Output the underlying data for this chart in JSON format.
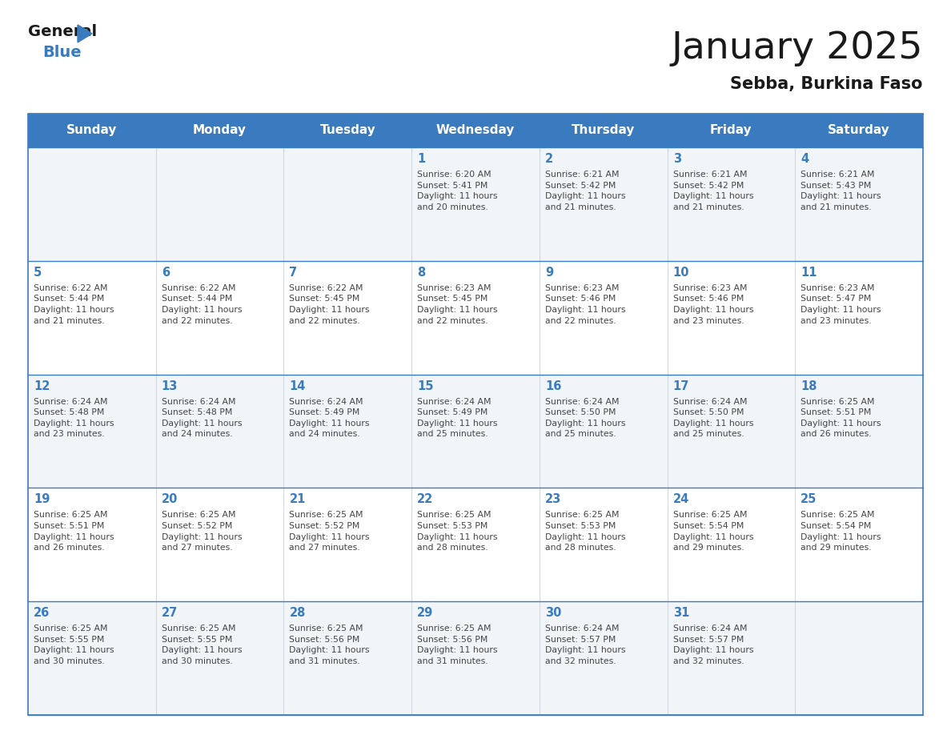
{
  "title": "January 2025",
  "subtitle": "Sebba, Burkina Faso",
  "days_of_week": [
    "Sunday",
    "Monday",
    "Tuesday",
    "Wednesday",
    "Thursday",
    "Friday",
    "Saturday"
  ],
  "header_bg": "#3a7bbf",
  "header_text": "#ffffff",
  "cell_bg_odd": "#f2f5f8",
  "cell_bg_even": "#ffffff",
  "border_color": "#3a7bbf",
  "title_color": "#1a1a1a",
  "subtitle_color": "#1a1a1a",
  "day_number_color": "#3a7bbf",
  "cell_text_color": "#444444",
  "calendar_data": [
    [
      {
        "day": null,
        "info": null
      },
      {
        "day": null,
        "info": null
      },
      {
        "day": null,
        "info": null
      },
      {
        "day": 1,
        "info": "Sunrise: 6:20 AM\nSunset: 5:41 PM\nDaylight: 11 hours\nand 20 minutes."
      },
      {
        "day": 2,
        "info": "Sunrise: 6:21 AM\nSunset: 5:42 PM\nDaylight: 11 hours\nand 21 minutes."
      },
      {
        "day": 3,
        "info": "Sunrise: 6:21 AM\nSunset: 5:42 PM\nDaylight: 11 hours\nand 21 minutes."
      },
      {
        "day": 4,
        "info": "Sunrise: 6:21 AM\nSunset: 5:43 PM\nDaylight: 11 hours\nand 21 minutes."
      }
    ],
    [
      {
        "day": 5,
        "info": "Sunrise: 6:22 AM\nSunset: 5:44 PM\nDaylight: 11 hours\nand 21 minutes."
      },
      {
        "day": 6,
        "info": "Sunrise: 6:22 AM\nSunset: 5:44 PM\nDaylight: 11 hours\nand 22 minutes."
      },
      {
        "day": 7,
        "info": "Sunrise: 6:22 AM\nSunset: 5:45 PM\nDaylight: 11 hours\nand 22 minutes."
      },
      {
        "day": 8,
        "info": "Sunrise: 6:23 AM\nSunset: 5:45 PM\nDaylight: 11 hours\nand 22 minutes."
      },
      {
        "day": 9,
        "info": "Sunrise: 6:23 AM\nSunset: 5:46 PM\nDaylight: 11 hours\nand 22 minutes."
      },
      {
        "day": 10,
        "info": "Sunrise: 6:23 AM\nSunset: 5:46 PM\nDaylight: 11 hours\nand 23 minutes."
      },
      {
        "day": 11,
        "info": "Sunrise: 6:23 AM\nSunset: 5:47 PM\nDaylight: 11 hours\nand 23 minutes."
      }
    ],
    [
      {
        "day": 12,
        "info": "Sunrise: 6:24 AM\nSunset: 5:48 PM\nDaylight: 11 hours\nand 23 minutes."
      },
      {
        "day": 13,
        "info": "Sunrise: 6:24 AM\nSunset: 5:48 PM\nDaylight: 11 hours\nand 24 minutes."
      },
      {
        "day": 14,
        "info": "Sunrise: 6:24 AM\nSunset: 5:49 PM\nDaylight: 11 hours\nand 24 minutes."
      },
      {
        "day": 15,
        "info": "Sunrise: 6:24 AM\nSunset: 5:49 PM\nDaylight: 11 hours\nand 25 minutes."
      },
      {
        "day": 16,
        "info": "Sunrise: 6:24 AM\nSunset: 5:50 PM\nDaylight: 11 hours\nand 25 minutes."
      },
      {
        "day": 17,
        "info": "Sunrise: 6:24 AM\nSunset: 5:50 PM\nDaylight: 11 hours\nand 25 minutes."
      },
      {
        "day": 18,
        "info": "Sunrise: 6:25 AM\nSunset: 5:51 PM\nDaylight: 11 hours\nand 26 minutes."
      }
    ],
    [
      {
        "day": 19,
        "info": "Sunrise: 6:25 AM\nSunset: 5:51 PM\nDaylight: 11 hours\nand 26 minutes."
      },
      {
        "day": 20,
        "info": "Sunrise: 6:25 AM\nSunset: 5:52 PM\nDaylight: 11 hours\nand 27 minutes."
      },
      {
        "day": 21,
        "info": "Sunrise: 6:25 AM\nSunset: 5:52 PM\nDaylight: 11 hours\nand 27 minutes."
      },
      {
        "day": 22,
        "info": "Sunrise: 6:25 AM\nSunset: 5:53 PM\nDaylight: 11 hours\nand 28 minutes."
      },
      {
        "day": 23,
        "info": "Sunrise: 6:25 AM\nSunset: 5:53 PM\nDaylight: 11 hours\nand 28 minutes."
      },
      {
        "day": 24,
        "info": "Sunrise: 6:25 AM\nSunset: 5:54 PM\nDaylight: 11 hours\nand 29 minutes."
      },
      {
        "day": 25,
        "info": "Sunrise: 6:25 AM\nSunset: 5:54 PM\nDaylight: 11 hours\nand 29 minutes."
      }
    ],
    [
      {
        "day": 26,
        "info": "Sunrise: 6:25 AM\nSunset: 5:55 PM\nDaylight: 11 hours\nand 30 minutes."
      },
      {
        "day": 27,
        "info": "Sunrise: 6:25 AM\nSunset: 5:55 PM\nDaylight: 11 hours\nand 30 minutes."
      },
      {
        "day": 28,
        "info": "Sunrise: 6:25 AM\nSunset: 5:56 PM\nDaylight: 11 hours\nand 31 minutes."
      },
      {
        "day": 29,
        "info": "Sunrise: 6:25 AM\nSunset: 5:56 PM\nDaylight: 11 hours\nand 31 minutes."
      },
      {
        "day": 30,
        "info": "Sunrise: 6:24 AM\nSunset: 5:57 PM\nDaylight: 11 hours\nand 32 minutes."
      },
      {
        "day": 31,
        "info": "Sunrise: 6:24 AM\nSunset: 5:57 PM\nDaylight: 11 hours\nand 32 minutes."
      },
      {
        "day": null,
        "info": null
      }
    ]
  ]
}
